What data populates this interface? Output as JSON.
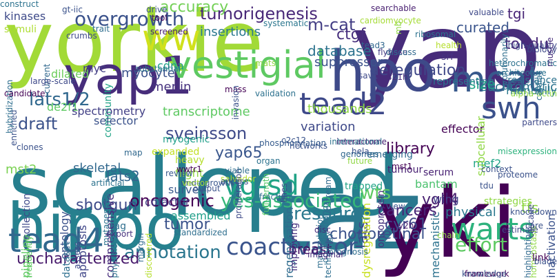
{
  "words": [
    {
      "text": "scalloped",
      "color": "#277f8e"
    },
    {
      "text": "yap",
      "color": "#472c7a"
    },
    {
      "text": "yorkie",
      "color": "#a2da37"
    },
    {
      "text": "hippo",
      "color": "#26818e"
    },
    {
      "text": "taz",
      "color": "#2a788e"
    },
    {
      "text": "yki",
      "color": "#440154"
    },
    {
      "text": "hpo",
      "color": "#3e4a89"
    },
    {
      "text": "yap1",
      "color": "#472d7b"
    },
    {
      "text": "vestigial",
      "color": "#5ec962"
    },
    {
      "text": "mcat",
      "color": "#38598c"
    },
    {
      "text": "swh",
      "color": "#3b518b"
    },
    {
      "text": "tead2",
      "color": "#3e4989"
    },
    {
      "text": "tead4",
      "color": "#31688e"
    },
    {
      "text": "warts",
      "color": "#2db27d"
    },
    {
      "text": "ww",
      "color": "#d0e11c"
    },
    {
      "text": "coactivator",
      "color": "#3a548c"
    },
    {
      "text": "vg-sd",
      "color": "#20a386"
    },
    {
      "text": "wts",
      "color": "#5ec962"
    },
    {
      "text": "annotation",
      "color": "#2a768e"
    },
    {
      "text": "overgrowth",
      "color": "#3b528b"
    },
    {
      "text": "tumorigenesis",
      "color": "#482878"
    },
    {
      "text": "accuracy",
      "color": "#73d056"
    },
    {
      "text": "m-cat",
      "color": "#433e85"
    },
    {
      "text": "ctgf",
      "color": "#472f7d"
    },
    {
      "text": "deregulation",
      "color": "#3f4788"
    },
    {
      "text": "tondu",
      "color": "#482979"
    },
    {
      "text": "database",
      "color": "#2c728e"
    },
    {
      "text": "curated",
      "color": "#3a548c"
    },
    {
      "text": "tgi",
      "color": "#482576"
    },
    {
      "text": "lats1/2",
      "color": "#31688e"
    },
    {
      "text": "draft",
      "color": "#3b528b"
    },
    {
      "text": "sveinsson",
      "color": "#3e4a89"
    },
    {
      "text": "transcriptome",
      "color": "#5ec962"
    },
    {
      "text": "yap65",
      "color": "#39568c"
    },
    {
      "text": "library",
      "color": "#440154"
    },
    {
      "text": "euchromatic",
      "color": "#2c738e"
    },
    {
      "text": "size",
      "color": "#20a386"
    },
    {
      "text": "lats2",
      "color": "#32658e"
    },
    {
      "text": "skeletal",
      "color": "#31688e"
    },
    {
      "text": "oncogenic",
      "color": "#440154"
    },
    {
      "text": "yes-associated",
      "color": "#35b779"
    },
    {
      "text": "shotgun",
      "color": "#3e4a89"
    },
    {
      "text": "resource",
      "color": "#2a788e"
    },
    {
      "text": "cancers",
      "color": "#482576"
    },
    {
      "text": "tumor",
      "color": "#3b528b"
    },
    {
      "text": "chorioretinal",
      "color": "#3b528b"
    },
    {
      "text": "effort",
      "color": "#5ec962"
    },
    {
      "text": "uncharacterized",
      "color": "#481a6c"
    },
    {
      "text": "vgll4",
      "color": "#481f70"
    },
    {
      "text": "cyr61",
      "color": "#3f4889"
    },
    {
      "text": "mst2",
      "color": "#7ad151"
    },
    {
      "text": "de2f1",
      "color": "#5ec962"
    },
    {
      "text": "kinases",
      "color": "#3e4a89"
    },
    {
      "text": "stimuli",
      "color": "#addc30"
    },
    {
      "text": "myc",
      "color": "#433e85"
    },
    {
      "text": "myocyte",
      "color": "#3b528b"
    },
    {
      "text": "merlin",
      "color": "#46327e"
    },
    {
      "text": "cdna",
      "color": "#1fa088"
    },
    {
      "text": "insertions",
      "color": "#2a788e"
    },
    {
      "text": "community",
      "color": "#20a386"
    },
    {
      "text": "dilated",
      "color": "#6ccd5a"
    },
    {
      "text": "suppressor",
      "color": "#3b528b"
    },
    {
      "text": "thousands",
      "color": "#8fd744"
    },
    {
      "text": "variation",
      "color": "#3e4989"
    },
    {
      "text": "spectrometry",
      "color": "#424086"
    },
    {
      "text": "selector",
      "color": "#3b528b"
    },
    {
      "text": "expanded",
      "color": "#c2df23"
    },
    {
      "text": "heavy",
      "color": "#b5de2b"
    },
    {
      "text": "flight",
      "color": "#90d743"
    },
    {
      "text": "myogenic",
      "color": "#1f9e89"
    },
    {
      "text": "tumour",
      "color": "#482173"
    },
    {
      "text": "mef2",
      "color": "#20a486"
    },
    {
      "text": "effector",
      "color": "#440154"
    },
    {
      "text": "inactivation",
      "color": "#3b528b"
    },
    {
      "text": "physical",
      "color": "#2a788e"
    },
    {
      "text": "tfs",
      "color": "#8fd744"
    },
    {
      "text": "lats",
      "color": "#3e4989"
    },
    {
      "text": "breast",
      "color": "#481467"
    },
    {
      "text": "trapped",
      "color": "#20a386"
    },
    {
      "text": "regeneration",
      "color": "#2f6c8e"
    },
    {
      "text": "dysregulation",
      "color": "#c8e020"
    },
    {
      "text": "oncoprotein",
      "color": "#46327e"
    },
    {
      "text": "wing",
      "color": "#424086"
    },
    {
      "text": "bantam",
      "color": "#4ac16d"
    },
    {
      "text": "survey",
      "color": "#38598c"
    },
    {
      "text": "cofactor",
      "color": "#433e85"
    },
    {
      "text": "assembled",
      "color": "#1f9e89"
    },
    {
      "text": "tag",
      "color": "#2e6e8e"
    },
    {
      "text": "apoptosis",
      "color": "#404688"
    },
    {
      "text": "ontology",
      "color": "#3b528b"
    },
    {
      "text": "pipeline",
      "color": "#5ec962"
    },
    {
      "text": "collection",
      "color": "#3e4989"
    },
    {
      "text": "dataset",
      "color": "#2e6f8e"
    },
    {
      "text": "comprehensive",
      "color": "#472d7b"
    },
    {
      "text": "improving",
      "color": "#46307e"
    },
    {
      "text": "mechanistic",
      "color": "#2c728e"
    },
    {
      "text": "subcellular",
      "color": "#8fd744"
    },
    {
      "text": "manually",
      "color": "#2a788e"
    },
    {
      "text": "emerging",
      "color": "#306a8e"
    },
    {
      "text": "mst1",
      "color": "#440154"
    },
    {
      "text": "serum",
      "color": "#482173"
    },
    {
      "text": "y421h",
      "color": "#472d7b"
    },
    {
      "text": "sav1",
      "color": "#3e4989"
    },
    {
      "text": "tead3",
      "color": "#31688e"
    },
    {
      "text": "srf",
      "color": "#46337f"
    },
    {
      "text": "flybase",
      "color": "#443a83"
    },
    {
      "text": "gt-iic",
      "color": "#3b528b"
    },
    {
      "text": "representing",
      "color": "#2c728e"
    },
    {
      "text": "searchable",
      "color": "#481f70"
    },
    {
      "text": "cardiomyocyte",
      "color": "#a5db36"
    },
    {
      "text": "systematic",
      "color": "#2a768e"
    },
    {
      "text": "mass",
      "color": "#440154"
    },
    {
      "text": "validation",
      "color": "#2c718e"
    },
    {
      "text": "full-length",
      "color": "#56c667"
    },
    {
      "text": "organ",
      "color": "#2c728e"
    },
    {
      "text": "salvador",
      "color": "#b5de2b"
    },
    {
      "text": "access",
      "color": "#3b518b"
    },
    {
      "text": "wwtr1",
      "color": "#440154"
    },
    {
      "text": "output",
      "color": "#3b528b"
    },
    {
      "text": "undergrowth",
      "color": "#39568c"
    },
    {
      "text": "networks",
      "color": "#3b528b"
    },
    {
      "text": "phosphorylation",
      "color": "#365c8d"
    },
    {
      "text": "interactome",
      "color": "#482173"
    },
    {
      "text": "c2c12",
      "color": "#3a548c"
    },
    {
      "text": "genomes",
      "color": "#31688e"
    },
    {
      "text": "proliferation",
      "color": "#3e4a89"
    },
    {
      "text": "vector",
      "color": "#a2da37"
    },
    {
      "text": "viable",
      "color": "#2e6e8e"
    },
    {
      "text": "fraction",
      "color": "#2e6e8e"
    },
    {
      "text": "standardized",
      "color": "#2e6e8e"
    },
    {
      "text": "discovered",
      "color": "#b5de2b"
    },
    {
      "text": "physiological",
      "color": "#2c728e"
    },
    {
      "text": "artificial",
      "color": "#2c728e"
    },
    {
      "text": "mutagenesis",
      "color": "#2c728e"
    },
    {
      "text": "assess",
      "color": "#3e4989"
    },
    {
      "text": "frequently",
      "color": "#5ec962"
    },
    {
      "text": "export",
      "color": "#46327e"
    },
    {
      "text": "margin",
      "color": "#306a8e"
    },
    {
      "text": "review",
      "color": "#38598c"
    },
    {
      "text": "clones",
      "color": "#3b528b"
    },
    {
      "text": "enriched",
      "color": "#3b528b"
    },
    {
      "text": "map",
      "color": "#31688e"
    },
    {
      "text": "lines",
      "color": "#3e4989"
    },
    {
      "text": "international",
      "color": "#2c728e"
    },
    {
      "text": "hela",
      "color": "#3b528b"
    },
    {
      "text": "future",
      "color": "#8fd744"
    },
    {
      "text": "upstream",
      "color": "#306a8e"
    },
    {
      "text": "manipulation",
      "color": "#2e6e8e"
    },
    {
      "text": "double-strand",
      "color": "#2e6e8e"
    },
    {
      "text": "technology",
      "color": "#2e6e8e"
    },
    {
      "text": "prognosis",
      "color": "#2e6e8e"
    },
    {
      "text": "imaginal",
      "color": "#472d7b"
    },
    {
      "text": "disc",
      "color": "#472d7b"
    },
    {
      "text": "view",
      "color": "#39568c"
    },
    {
      "text": "y2h",
      "color": "#481a6c"
    },
    {
      "text": "chain",
      "color": "#8fd744"
    },
    {
      "text": "framework",
      "color": "#440154"
    },
    {
      "text": "knowledge",
      "color": "#3b528b"
    },
    {
      "text": "strategies",
      "color": "#8fd744"
    },
    {
      "text": "estimate",
      "color": "#3e4989"
    },
    {
      "text": "highlighting",
      "color": "#306a8e"
    },
    {
      "text": "homeostasis",
      "color": "#8fd744"
    },
    {
      "text": "link",
      "color": "#440154"
    },
    {
      "text": "blade",
      "color": "#3b528b"
    },
    {
      "text": "core",
      "color": "#3b528b"
    },
    {
      "text": "cascade",
      "color": "#3e4989"
    },
    {
      "text": "knockdown",
      "color": "#3b528b"
    },
    {
      "text": "tdu",
      "color": "#3b528b"
    },
    {
      "text": "context",
      "color": "#3b528b"
    },
    {
      "text": "proteome",
      "color": "#3b528b"
    },
    {
      "text": "misexpression",
      "color": "#2db27d"
    },
    {
      "text": "partners",
      "color": "#3e4989"
    },
    {
      "text": "alpha-actin",
      "color": "#8fd744"
    },
    {
      "text": "cardiac",
      "color": "#2e6e8e"
    },
    {
      "text": "resistance",
      "color": "#2c728e"
    },
    {
      "text": "architecture",
      "color": "#2c728e"
    },
    {
      "text": "heterochromatic",
      "color": "#2c728e"
    },
    {
      "text": "biology",
      "color": "#3e4989"
    },
    {
      "text": "high-quality",
      "color": "#3e4989"
    },
    {
      "text": "muscle",
      "color": "#472d7b"
    },
    {
      "text": "evolutionarily",
      "color": "#2e6e8e"
    },
    {
      "text": "valuable",
      "color": "#3e4989"
    },
    {
      "text": "health",
      "color": "#b5de2b"
    },
    {
      "text": "ribosomal",
      "color": "#2c728e"
    },
    {
      "text": "mb",
      "color": "#8fd744"
    },
    {
      "text": "discuss",
      "color": "#306a8e"
    },
    {
      "text": "mats",
      "color": "#8fd744"
    },
    {
      "text": "drive",
      "color": "#3b528b"
    },
    {
      "text": "tool",
      "color": "#440154"
    },
    {
      "text": "screened",
      "color": "#482173"
    },
    {
      "text": "crumbs",
      "color": "#3e4989"
    },
    {
      "text": "current",
      "color": "#31688e"
    },
    {
      "text": "hybridization",
      "color": "#2e6e8e"
    },
    {
      "text": "large-scale",
      "color": "#3e4989"
    },
    {
      "text": "candidate",
      "color": "#440154"
    },
    {
      "text": "substantial",
      "color": "#2c728e"
    },
    {
      "text": "trait",
      "color": "#2e6e8e"
    },
    {
      "text": "invasion",
      "color": "#3b528b"
    },
    {
      "text": "construct",
      "color": "#2c728e"
    }
  ]
}
